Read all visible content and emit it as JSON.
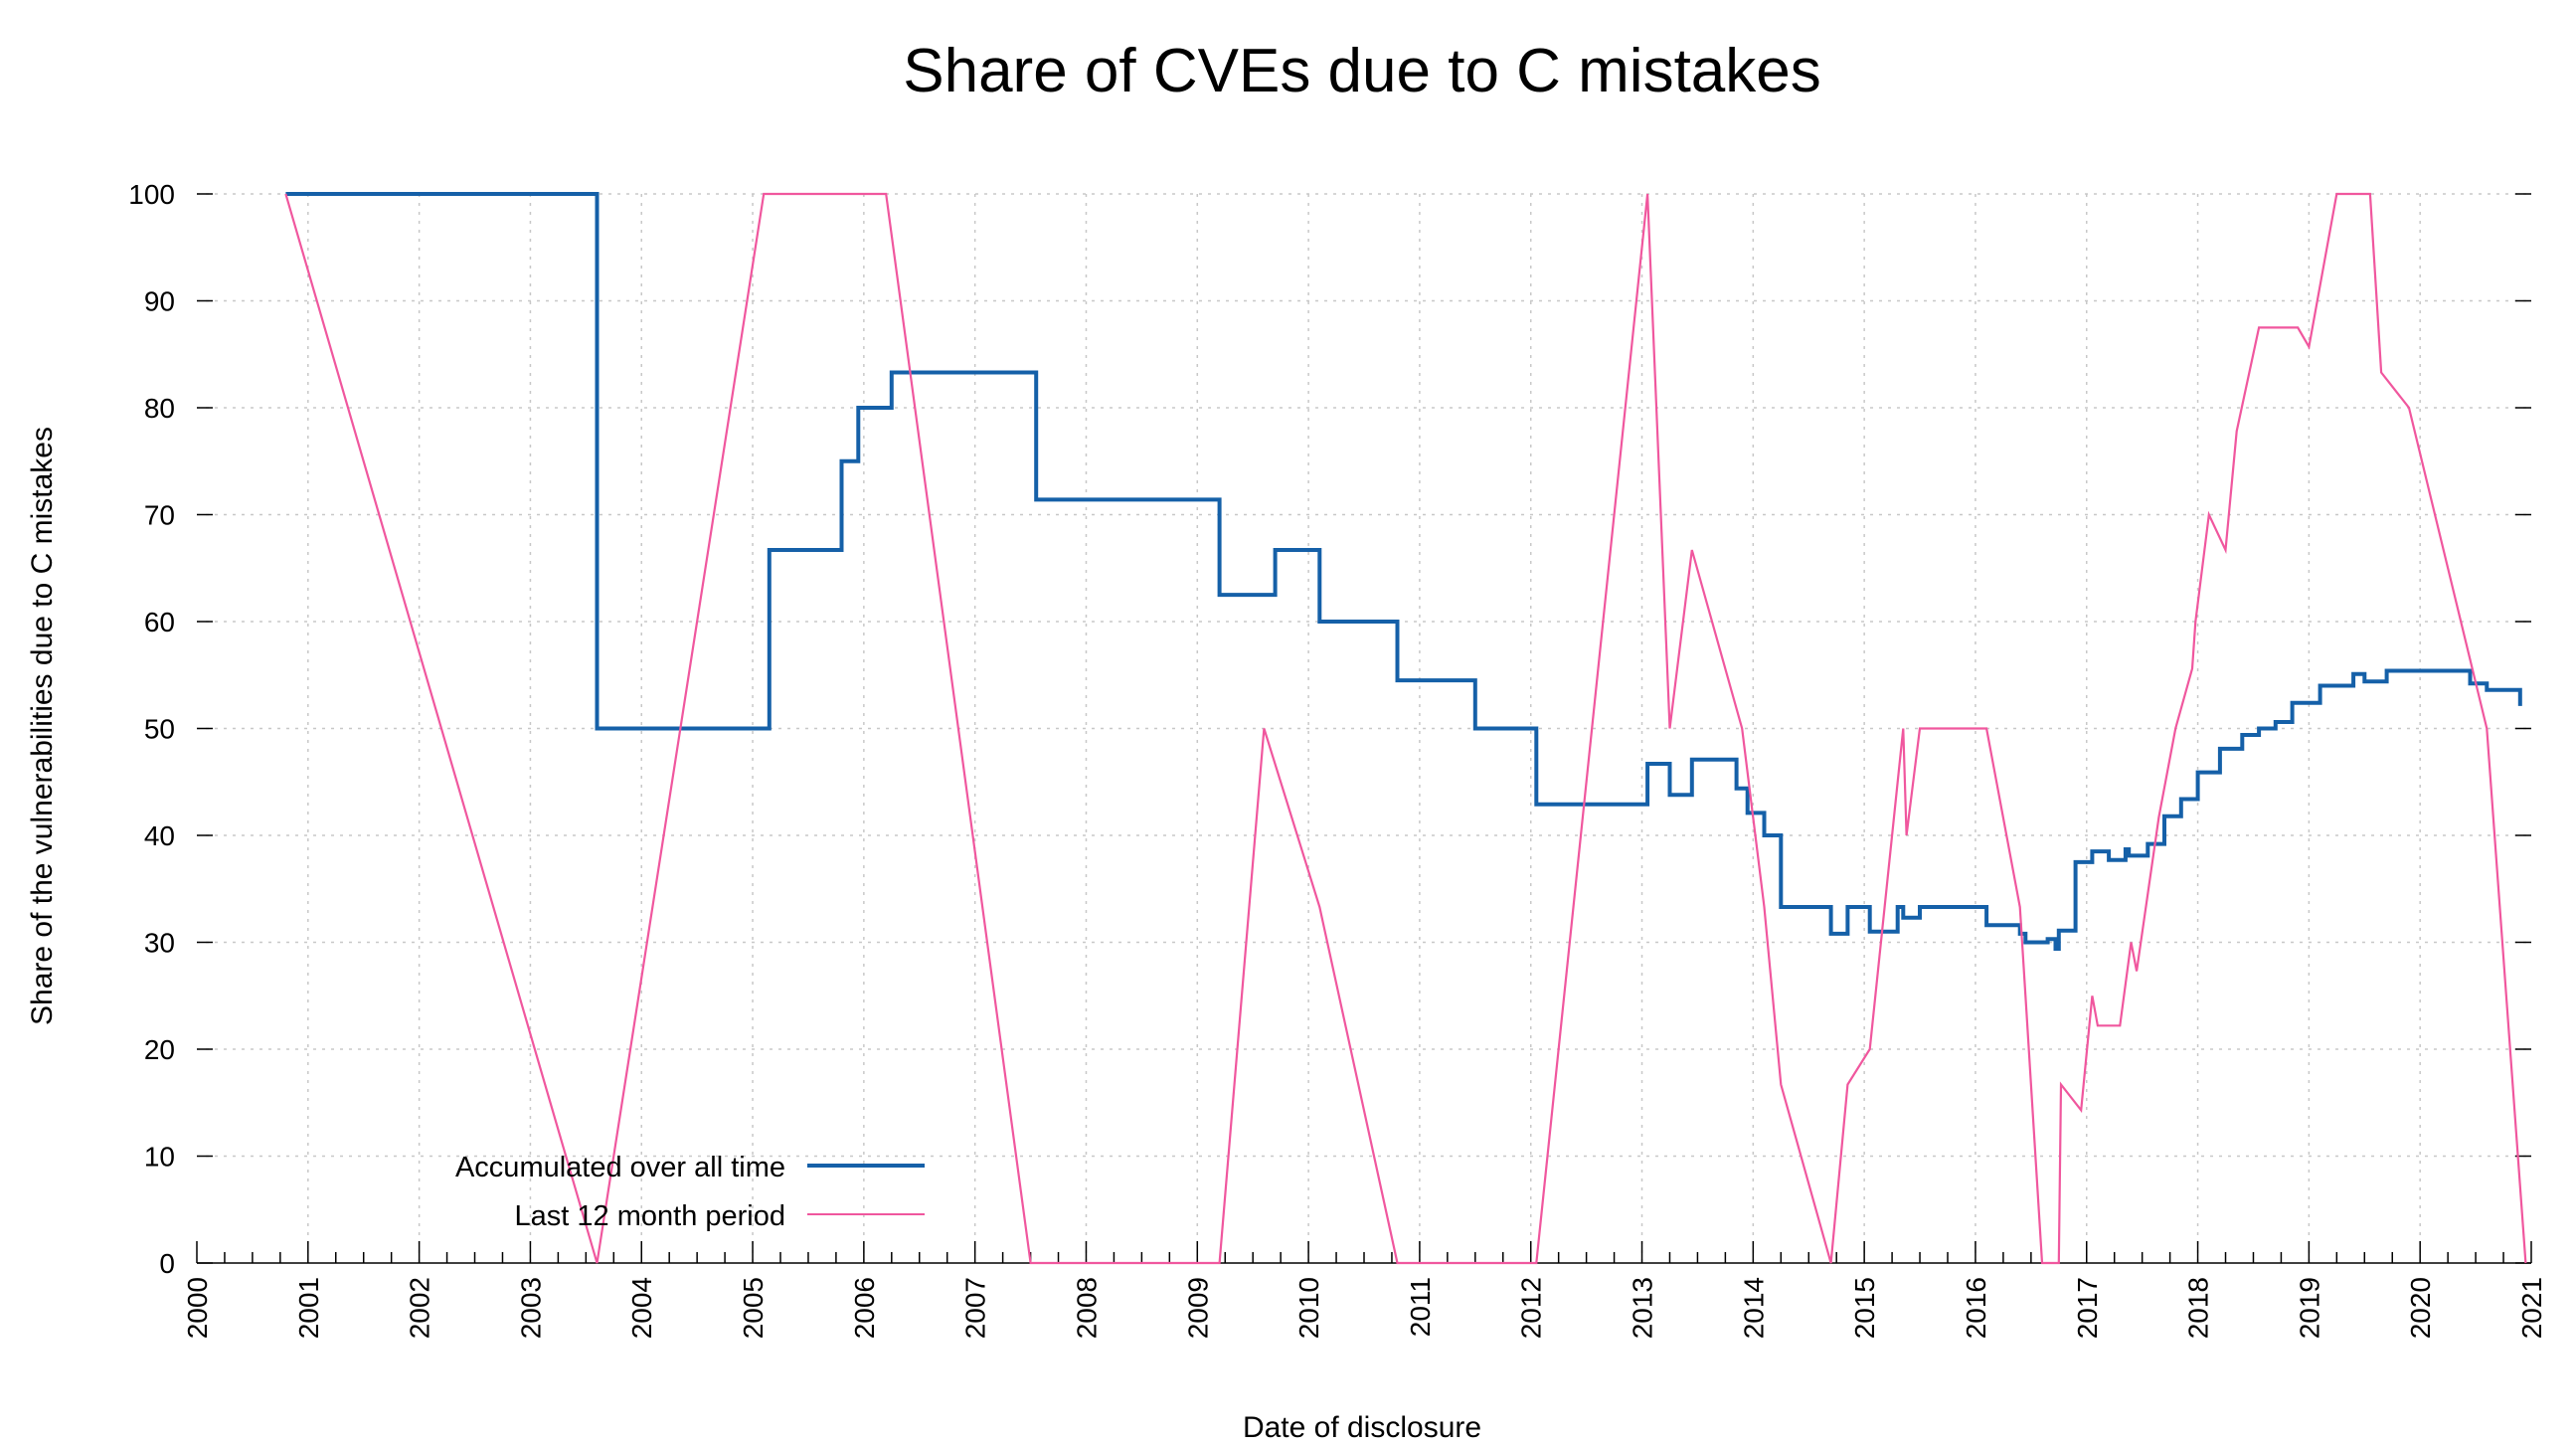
{
  "chart_data": {
    "type": "line",
    "title": "Share of CVEs due to C mistakes",
    "xlabel": "Date of disclosure",
    "ylabel": "Share of the vulnerabilities due to C mistakes",
    "xlim": [
      2000,
      2021
    ],
    "ylim": [
      0,
      100
    ],
    "x_ticks": [
      "2000",
      "2001",
      "2002",
      "2003",
      "2004",
      "2005",
      "2006",
      "2007",
      "2008",
      "2009",
      "2010",
      "2011",
      "2012",
      "2013",
      "2014",
      "2015",
      "2016",
      "2017",
      "2018",
      "2019",
      "2020",
      "2021"
    ],
    "y_ticks": [
      "0",
      "10",
      "20",
      "30",
      "40",
      "50",
      "60",
      "70",
      "80",
      "90",
      "100"
    ],
    "grid": true,
    "legend_position": "bottom-left",
    "series": [
      {
        "name": "Accumulated over all time",
        "color": "#1560a8",
        "style": "step",
        "points": [
          [
            2000.8,
            100
          ],
          [
            2003.6,
            50
          ],
          [
            2005.15,
            66.7
          ],
          [
            2005.8,
            75
          ],
          [
            2005.95,
            80
          ],
          [
            2006.25,
            83.3
          ],
          [
            2007.55,
            71.4
          ],
          [
            2009.2,
            62.5
          ],
          [
            2009.7,
            66.7
          ],
          [
            2010.1,
            60
          ],
          [
            2010.8,
            54.5
          ],
          [
            2011.5,
            50
          ],
          [
            2012.05,
            42.9
          ],
          [
            2013.05,
            46.7
          ],
          [
            2013.25,
            43.8
          ],
          [
            2013.45,
            47.1
          ],
          [
            2013.85,
            44.4
          ],
          [
            2013.95,
            42.1
          ],
          [
            2014.1,
            40
          ],
          [
            2014.25,
            33.3
          ],
          [
            2014.7,
            30.8
          ],
          [
            2014.85,
            33.3
          ],
          [
            2015.05,
            31
          ],
          [
            2015.3,
            33.3
          ],
          [
            2015.35,
            32.3
          ],
          [
            2015.5,
            33.3
          ],
          [
            2016.1,
            31.6
          ],
          [
            2016.4,
            30.8
          ],
          [
            2016.45,
            30
          ],
          [
            2016.65,
            30.3
          ],
          [
            2016.72,
            29.4
          ],
          [
            2016.75,
            31.1
          ],
          [
            2016.9,
            37.5
          ],
          [
            2017.05,
            38.5
          ],
          [
            2017.2,
            37.7
          ],
          [
            2017.35,
            38.7
          ],
          [
            2017.38,
            38.1
          ],
          [
            2017.55,
            39.2
          ],
          [
            2017.7,
            41.8
          ],
          [
            2017.85,
            43.4
          ],
          [
            2018.0,
            45.9
          ],
          [
            2018.2,
            48.1
          ],
          [
            2018.4,
            49.4
          ],
          [
            2018.55,
            50
          ],
          [
            2018.7,
            50.6
          ],
          [
            2018.85,
            52.4
          ],
          [
            2019.1,
            54
          ],
          [
            2019.4,
            55.1
          ],
          [
            2019.5,
            54.4
          ],
          [
            2019.7,
            55.4
          ],
          [
            2020.45,
            54.2
          ],
          [
            2020.6,
            53.6
          ],
          [
            2020.9,
            52.1
          ]
        ]
      },
      {
        "name": "Last 12 month period",
        "color": "#f0579e",
        "style": "line",
        "points": [
          [
            2000.8,
            100
          ],
          [
            2003.6,
            0
          ],
          [
            2005.1,
            100
          ],
          [
            2006.2,
            100
          ],
          [
            2007.5,
            0
          ],
          [
            2009.2,
            0
          ],
          [
            2009.6,
            50
          ],
          [
            2010.1,
            33.3
          ],
          [
            2010.8,
            0
          ],
          [
            2012.05,
            0
          ],
          [
            2013.05,
            100
          ],
          [
            2013.25,
            50
          ],
          [
            2013.45,
            66.7
          ],
          [
            2013.9,
            50
          ],
          [
            2014.1,
            33.3
          ],
          [
            2014.25,
            16.7
          ],
          [
            2014.7,
            0
          ],
          [
            2014.85,
            16.7
          ],
          [
            2015.05,
            20
          ],
          [
            2015.35,
            50
          ],
          [
            2015.38,
            40
          ],
          [
            2015.5,
            50
          ],
          [
            2016.1,
            50
          ],
          [
            2016.4,
            33.3
          ],
          [
            2016.45,
            25
          ],
          [
            2016.6,
            0
          ],
          [
            2016.75,
            0
          ],
          [
            2016.77,
            16.7
          ],
          [
            2016.95,
            14.3
          ],
          [
            2017.05,
            25
          ],
          [
            2017.1,
            22.2
          ],
          [
            2017.3,
            22.2
          ],
          [
            2017.4,
            30
          ],
          [
            2017.45,
            27.3
          ],
          [
            2017.65,
            41.7
          ],
          [
            2017.8,
            50
          ],
          [
            2017.95,
            55.6
          ],
          [
            2017.98,
            60
          ],
          [
            2018.1,
            70
          ],
          [
            2018.25,
            66.7
          ],
          [
            2018.35,
            77.8
          ],
          [
            2018.55,
            87.5
          ],
          [
            2018.9,
            87.5
          ],
          [
            2019.0,
            85.7
          ],
          [
            2019.25,
            100
          ],
          [
            2019.55,
            100
          ],
          [
            2019.65,
            83.3
          ],
          [
            2019.9,
            80
          ],
          [
            2020.6,
            50
          ],
          [
            2020.95,
            0
          ]
        ]
      }
    ]
  }
}
